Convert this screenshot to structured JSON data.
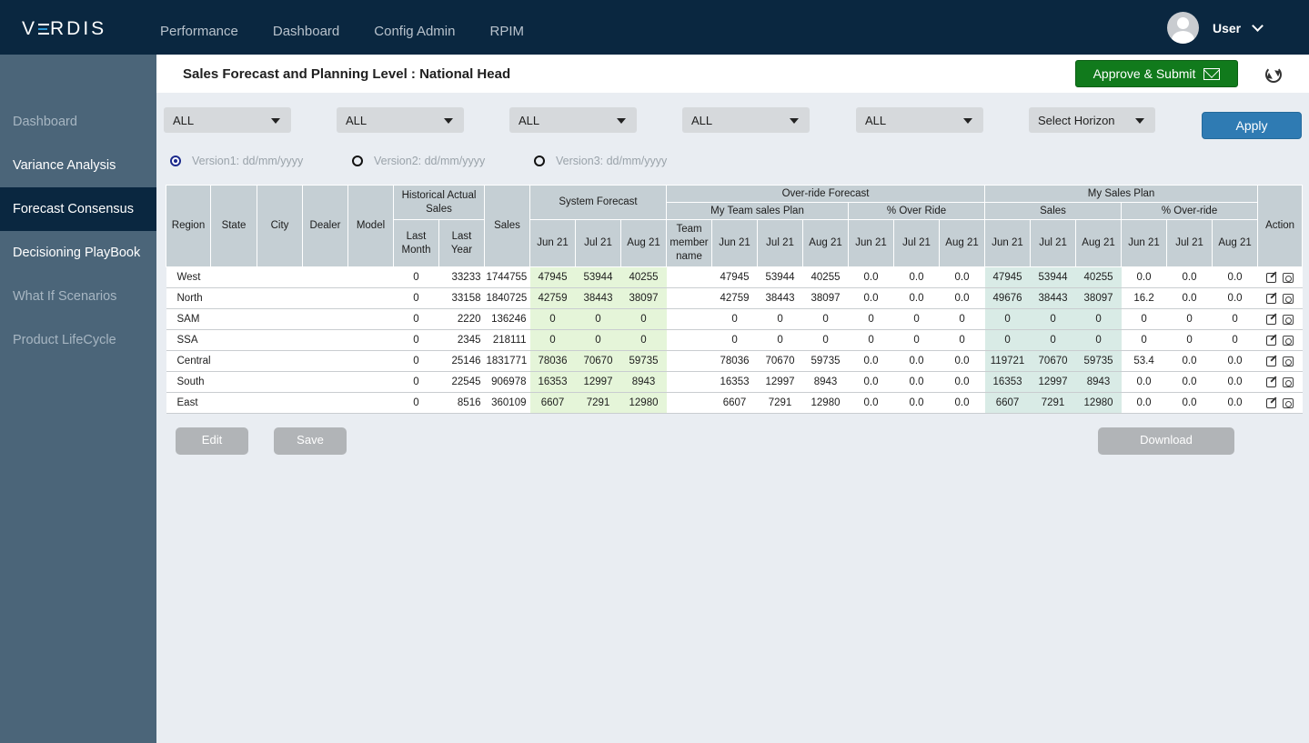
{
  "brand": "VERDIS",
  "nav": [
    "Performance",
    "Dashboard",
    "Config Admin",
    "RPIM"
  ],
  "user": {
    "name": "User"
  },
  "sidebar": [
    {
      "label": "Dashboard",
      "state": "muted"
    },
    {
      "label": "Variance Analysis",
      "state": "normal"
    },
    {
      "label": "Forecast Consensus",
      "state": "active"
    },
    {
      "label": "Decisioning PlayBook",
      "state": "normal"
    },
    {
      "label": "What If Scenarios",
      "state": "muted"
    },
    {
      "label": "Product LifeCycle",
      "state": "muted"
    }
  ],
  "header": {
    "title": "Sales Forecast and Planning Level : National Head",
    "approve_label": "Approve & Submit"
  },
  "filters": [
    "ALL",
    "ALL",
    "ALL",
    "ALL",
    "ALL",
    "Select Horizon"
  ],
  "apply_label": "Apply",
  "versions": [
    {
      "label": "Version1: dd/mm/yyyy",
      "selected": true
    },
    {
      "label": "Version2: dd/mm/yyyy",
      "selected": false
    },
    {
      "label": "Version3: dd/mm/yyyy",
      "selected": false
    }
  ],
  "table": {
    "headers": {
      "region": "Region",
      "state": "State",
      "city": "City",
      "dealer": "Dealer",
      "model": "Model",
      "historical": "Historical Actual Sales",
      "last_month": "Last Month",
      "last_year": "Last Year",
      "sales": "Sales",
      "system_forecast": "System Forecast",
      "override_forecast": "Over-ride Forecast",
      "my_team_sales_plan": "My Team sales Plan",
      "pct_override": "% Over Ride",
      "team_member": "Team member name",
      "my_sales_plan": "My Sales Plan",
      "sp_sales": "Sales",
      "sp_pct_override": "% Over-ride",
      "action": "Action",
      "months": [
        "Jun 21",
        "Jul 21",
        "Aug 21"
      ]
    },
    "rows": [
      {
        "region": "West",
        "last_month": "0",
        "last_year": "33233",
        "sales": "1744755",
        "sf": [
          "47945",
          "53944",
          "40255"
        ],
        "team": [
          "47945",
          "53944",
          "40255"
        ],
        "ovr": [
          "0.0",
          "0.0",
          "0.0"
        ],
        "sp": [
          "47945",
          "53944",
          "40255"
        ],
        "spo": [
          "0.0",
          "0.0",
          "0.0"
        ]
      },
      {
        "region": "North",
        "last_month": "0",
        "last_year": "33158",
        "sales": "1840725",
        "sf": [
          "42759",
          "38443",
          "38097"
        ],
        "team": [
          "42759",
          "38443",
          "38097"
        ],
        "ovr": [
          "0.0",
          "0.0",
          "0.0"
        ],
        "sp": [
          "49676",
          "38443",
          "38097"
        ],
        "spo": [
          "16.2",
          "0.0",
          "0.0"
        ]
      },
      {
        "region": "SAM",
        "last_month": "0",
        "last_year": "2220",
        "sales": "136246",
        "sf": [
          "0",
          "0",
          "0"
        ],
        "team": [
          "0",
          "0",
          "0"
        ],
        "ovr": [
          "0",
          "0",
          "0"
        ],
        "sp": [
          "0",
          "0",
          "0"
        ],
        "spo": [
          "0",
          "0",
          "0"
        ]
      },
      {
        "region": "SSA",
        "last_month": "0",
        "last_year": "2345",
        "sales": "218111",
        "sf": [
          "0",
          "0",
          "0"
        ],
        "team": [
          "0",
          "0",
          "0"
        ],
        "ovr": [
          "0",
          "0",
          "0"
        ],
        "sp": [
          "0",
          "0",
          "0"
        ],
        "spo": [
          "0",
          "0",
          "0"
        ]
      },
      {
        "region": "Central",
        "last_month": "0",
        "last_year": "25146",
        "sales": "1831771",
        "sf": [
          "78036",
          "70670",
          "59735"
        ],
        "team": [
          "78036",
          "70670",
          "59735"
        ],
        "ovr": [
          "0.0",
          "0.0",
          "0.0"
        ],
        "sp": [
          "119721",
          "70670",
          "59735"
        ],
        "spo": [
          "53.4",
          "0.0",
          "0.0"
        ]
      },
      {
        "region": "South",
        "last_month": "0",
        "last_year": "22545",
        "sales": "906978",
        "sf": [
          "16353",
          "12997",
          "8943"
        ],
        "team": [
          "16353",
          "12997",
          "8943"
        ],
        "ovr": [
          "0.0",
          "0.0",
          "0.0"
        ],
        "sp": [
          "16353",
          "12997",
          "8943"
        ],
        "spo": [
          "0.0",
          "0.0",
          "0.0"
        ]
      },
      {
        "region": "East",
        "last_month": "0",
        "last_year": "8516",
        "sales": "360109",
        "sf": [
          "6607",
          "7291",
          "12980"
        ],
        "team": [
          "6607",
          "7291",
          "12980"
        ],
        "ovr": [
          "0.0",
          "0.0",
          "0.0"
        ],
        "sp": [
          "6607",
          "7291",
          "12980"
        ],
        "spo": [
          "0.0",
          "0.0",
          "0.0"
        ]
      }
    ]
  },
  "buttons": {
    "edit": "Edit",
    "save": "Save",
    "download": "Download"
  },
  "colors": {
    "topbar": "#0a2740",
    "sidebar": "#4b6579",
    "approve": "#117a1c",
    "apply": "#2f7bb3",
    "system_forecast_cell": "#e5f5d9",
    "sales_plan_cell": "#d9ebe6"
  }
}
